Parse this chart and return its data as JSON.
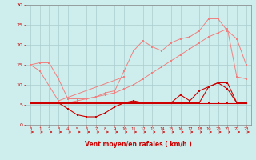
{
  "x": [
    0,
    1,
    2,
    3,
    4,
    5,
    6,
    7,
    8,
    9,
    10,
    11,
    12,
    13,
    14,
    15,
    16,
    17,
    18,
    19,
    20,
    21,
    22,
    23
  ],
  "line_light1": [
    15.0,
    13.5,
    null,
    6.0,
    null,
    null,
    null,
    null,
    null,
    null,
    12.0,
    null,
    null,
    null,
    null,
    null,
    null,
    null,
    null,
    null,
    null,
    null,
    null,
    null
  ],
  "line_light2": [
    15.0,
    15.5,
    15.5,
    11.5,
    6.5,
    6.5,
    6.5,
    7.0,
    8.0,
    8.5,
    13.5,
    18.5,
    21.0,
    19.5,
    18.5,
    20.5,
    21.5,
    22.0,
    23.5,
    26.5,
    26.5,
    23.5,
    21.5,
    15.0
  ],
  "line_light3": [
    5.5,
    5.5,
    5.5,
    5.5,
    5.5,
    6.0,
    6.5,
    7.0,
    7.5,
    8.0,
    9.0,
    10.0,
    11.5,
    13.0,
    14.5,
    16.0,
    17.5,
    19.0,
    20.5,
    22.0,
    23.0,
    24.0,
    12.0,
    11.5
  ],
  "line_dark1": [
    5.5,
    5.5,
    5.5,
    5.5,
    4.0,
    2.5,
    2.0,
    2.0,
    3.0,
    4.5,
    5.5,
    6.0,
    5.5,
    5.5,
    5.5,
    5.5,
    7.5,
    6.0,
    8.5,
    9.5,
    10.5,
    10.5,
    5.5,
    5.5
  ],
  "line_dark2": [
    5.5,
    5.5,
    5.5,
    5.5,
    5.5,
    5.5,
    5.5,
    5.5,
    5.5,
    5.5,
    5.5,
    5.5,
    5.5,
    5.5,
    5.5,
    5.5,
    5.5,
    5.5,
    5.5,
    5.5,
    5.5,
    5.5,
    5.5,
    5.5
  ],
  "line_dark3": [
    5.5,
    5.5,
    5.5,
    5.5,
    5.5,
    5.5,
    5.5,
    5.5,
    5.5,
    5.5,
    5.5,
    5.5,
    5.5,
    5.5,
    5.5,
    5.5,
    5.5,
    5.5,
    5.5,
    9.5,
    10.5,
    9.0,
    5.5,
    5.5
  ],
  "xlabel": "Vent moyen/en rafales ( km/h )",
  "ylim": [
    0,
    30
  ],
  "xlim": [
    -0.5,
    23.5
  ],
  "yticks": [
    0,
    5,
    10,
    15,
    20,
    25,
    30
  ],
  "xticks": [
    0,
    1,
    2,
    3,
    4,
    5,
    6,
    7,
    8,
    9,
    10,
    11,
    12,
    13,
    14,
    15,
    16,
    17,
    18,
    19,
    20,
    21,
    22,
    23
  ],
  "bg_color": "#ceeeed",
  "grid_color": "#aacccc",
  "line_color_light": "#f08080",
  "line_color_dark": "#cc0000",
  "xlabel_color": "#cc0000",
  "ytick_color": "#cc0000",
  "xtick_color": "#cc0000"
}
